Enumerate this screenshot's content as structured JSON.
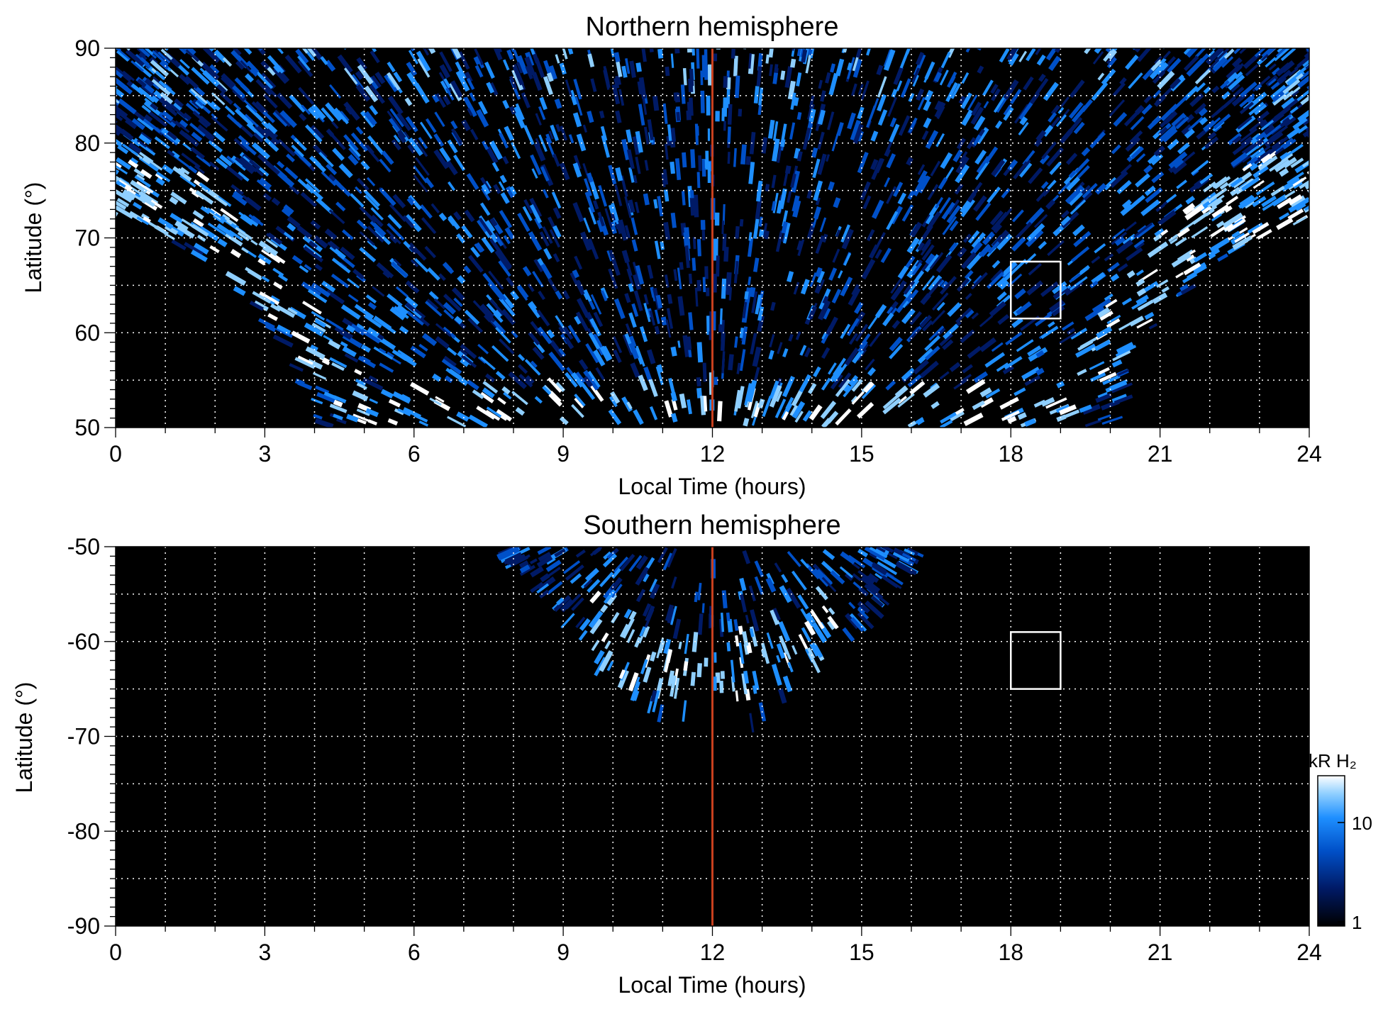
{
  "chart_data": [
    {
      "type": "heatmap",
      "title": "Northern hemisphere",
      "xlabel": "Local Time (hours)",
      "ylabel": "Latitude (°)",
      "xlim": [
        0,
        24
      ],
      "ylim": [
        50,
        90
      ],
      "x_ticks": [
        "0",
        "3",
        "6",
        "9",
        "12",
        "15",
        "18",
        "21",
        "24"
      ],
      "y_ticks": [
        "50",
        "60",
        "70",
        "80",
        "90"
      ],
      "grid": true,
      "noon_line_x": 12,
      "boundary": [
        [
          0,
          72
        ],
        [
          1,
          70
        ],
        [
          2,
          67
        ],
        [
          3,
          62
        ],
        [
          3.6,
          57
        ],
        [
          4,
          50
        ],
        [
          20,
          50
        ],
        [
          20.4,
          57
        ],
        [
          21,
          62
        ],
        [
          22,
          67
        ],
        [
          23,
          70
        ],
        [
          24,
          72
        ]
      ],
      "bright_band": [
        [
          0,
          76
        ],
        [
          2,
          72
        ],
        [
          3.5,
          64
        ],
        [
          4.7,
          55
        ],
        [
          5.1,
          50
        ],
        [
          18.9,
          50
        ],
        [
          19.3,
          55
        ],
        [
          20.5,
          64
        ],
        [
          22,
          72
        ],
        [
          24,
          76
        ]
      ],
      "box": {
        "x": [
          18,
          19
        ],
        "y": [
          61.5,
          67.5
        ]
      }
    },
    {
      "type": "heatmap",
      "title": "Southern hemisphere",
      "xlabel": "Local Time (hours)",
      "ylabel": "Latitude (°)",
      "xlim": [
        0,
        24
      ],
      "ylim": [
        -90,
        -50
      ],
      "x_ticks": [
        "0",
        "3",
        "6",
        "9",
        "12",
        "15",
        "18",
        "21",
        "24"
      ],
      "y_ticks": [
        "-50",
        "-60",
        "-70",
        "-80",
        "-90"
      ],
      "grid": true,
      "noon_line_x": 12,
      "boundary": [
        [
          8,
          -50
        ],
        [
          9,
          -57
        ],
        [
          10,
          -63
        ],
        [
          11,
          -67.5
        ],
        [
          11.3,
          -68
        ],
        [
          11.6,
          -66
        ],
        [
          12,
          -65.5
        ],
        [
          12.4,
          -66
        ],
        [
          12.7,
          -68
        ],
        [
          13,
          -67.5
        ],
        [
          14,
          -63
        ],
        [
          15,
          -57
        ],
        [
          16,
          -50
        ]
      ],
      "bright_band": [
        [
          9.6,
          -57
        ],
        [
          10.5,
          -60
        ],
        [
          11.5,
          -62
        ],
        [
          12,
          -62.5
        ],
        [
          12.5,
          -62
        ],
        [
          13.5,
          -60
        ],
        [
          14.4,
          -57
        ]
      ],
      "box": {
        "x": [
          18,
          19
        ],
        "y": [
          -65,
          -59
        ]
      }
    }
  ],
  "colorbar": {
    "title": "kR H₂",
    "ticks": [
      "10",
      "1"
    ],
    "colors": [
      "#000000",
      "#001a66",
      "#0050c8",
      "#1e8fff",
      "#8fcfff",
      "#ffffff"
    ]
  },
  "colors": {
    "noon_line": "#c8401e",
    "grid": "#ffffff",
    "background": "#000000"
  }
}
